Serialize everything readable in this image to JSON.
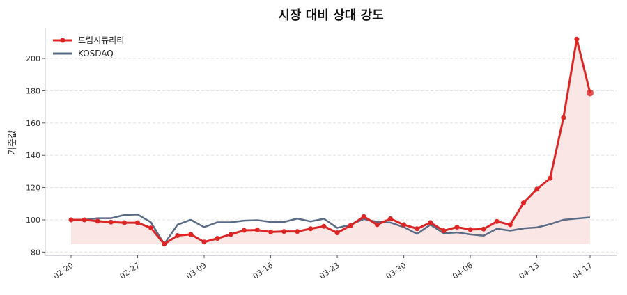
{
  "chart_data": {
    "type": "line",
    "title": "시장 대비 상대 강도",
    "xlabel": "",
    "ylabel": "기준값",
    "ylim": [
      78,
      219
    ],
    "yticks": [
      80,
      100,
      120,
      140,
      160,
      180,
      200
    ],
    "grid": "horizontal dashed",
    "legend": "top-left",
    "x": [
      "02-20",
      "02-23",
      "02-24",
      "02-25",
      "02-26",
      "02-27",
      "03-03",
      "03-04",
      "03-05",
      "03-06",
      "03-09",
      "03-10",
      "03-11",
      "03-12",
      "03-13",
      "03-16",
      "03-17",
      "03-18",
      "03-19",
      "03-20",
      "03-23",
      "03-24",
      "03-25",
      "03-26",
      "03-27",
      "03-30",
      "03-31",
      "04-01",
      "04-02",
      "04-03",
      "04-06",
      "04-07",
      "04-08",
      "04-09",
      "04-10",
      "04-13",
      "04-14",
      "04-15",
      "04-16",
      "04-17"
    ],
    "xtick_labels": [
      "02-20",
      "02-27",
      "03-09",
      "03-16",
      "03-23",
      "03-30",
      "04-06",
      "04-13",
      "04-17"
    ],
    "series": [
      {
        "name": "드림시큐리티",
        "color": "#dc2626",
        "markers": true,
        "values": [
          100,
          100,
          99.2,
          98.6,
          98.2,
          98.2,
          95,
          85,
          90.3,
          91,
          86.3,
          88.5,
          91,
          93.5,
          93.7,
          92.5,
          92.8,
          92.8,
          94.5,
          96,
          92,
          96.5,
          102,
          97,
          100.7,
          97,
          94.5,
          98.3,
          93.3,
          95.5,
          94,
          94.3,
          99,
          97,
          110.5,
          119,
          125.8,
          163.3,
          212,
          178.7
        ]
      },
      {
        "name": "KOSDAQ",
        "color": "#5a6b85",
        "markers": false,
        "values": [
          100,
          100,
          101,
          101,
          103,
          103.3,
          98.5,
          85,
          97,
          100,
          95.5,
          98.5,
          98.5,
          99.5,
          99.8,
          98.7,
          98.7,
          100.8,
          99,
          100.7,
          95,
          97,
          100.5,
          98.7,
          98.3,
          95.5,
          91.3,
          97,
          91.7,
          92.2,
          91,
          90.2,
          94.5,
          93.3,
          94.7,
          95.3,
          97.3,
          100,
          100.8,
          101.5
        ]
      }
    ],
    "fill_color": "#fbe6e6"
  }
}
